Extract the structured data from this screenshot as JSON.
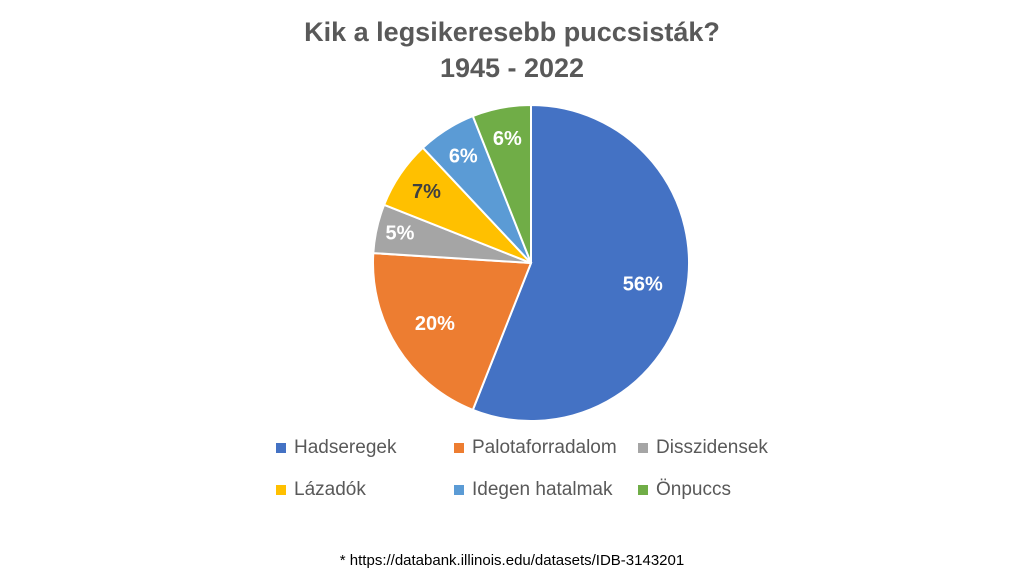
{
  "chart_data": {
    "type": "pie",
    "title": "Kik a legsikeresebb puccsisták?",
    "subtitle": "1945 - 2022",
    "categories": [
      "Hadseregek",
      "Palotaforradalom",
      "Disszidensek",
      "Lázadók",
      "Idegen hatalmak",
      "Önpuccs"
    ],
    "values": [
      56,
      20,
      5,
      7,
      6,
      6
    ],
    "data_labels": [
      "56%",
      "20%",
      "5%",
      "7%",
      "6%",
      "6%"
    ],
    "colors": [
      "#4472C4",
      "#ED7D31",
      "#A5A5A5",
      "#FFC000",
      "#5B9BD5",
      "#70AD47"
    ],
    "label_colors": [
      "#FFFFFF",
      "#FFFFFF",
      "#FFFFFF",
      "#404040",
      "#FFFFFF",
      "#FFFFFF"
    ],
    "start": "top",
    "direction": "clockwise",
    "legend_position": "bottom"
  },
  "footnote": "* https://databank.illinois.edu/datasets/IDB-3143201"
}
